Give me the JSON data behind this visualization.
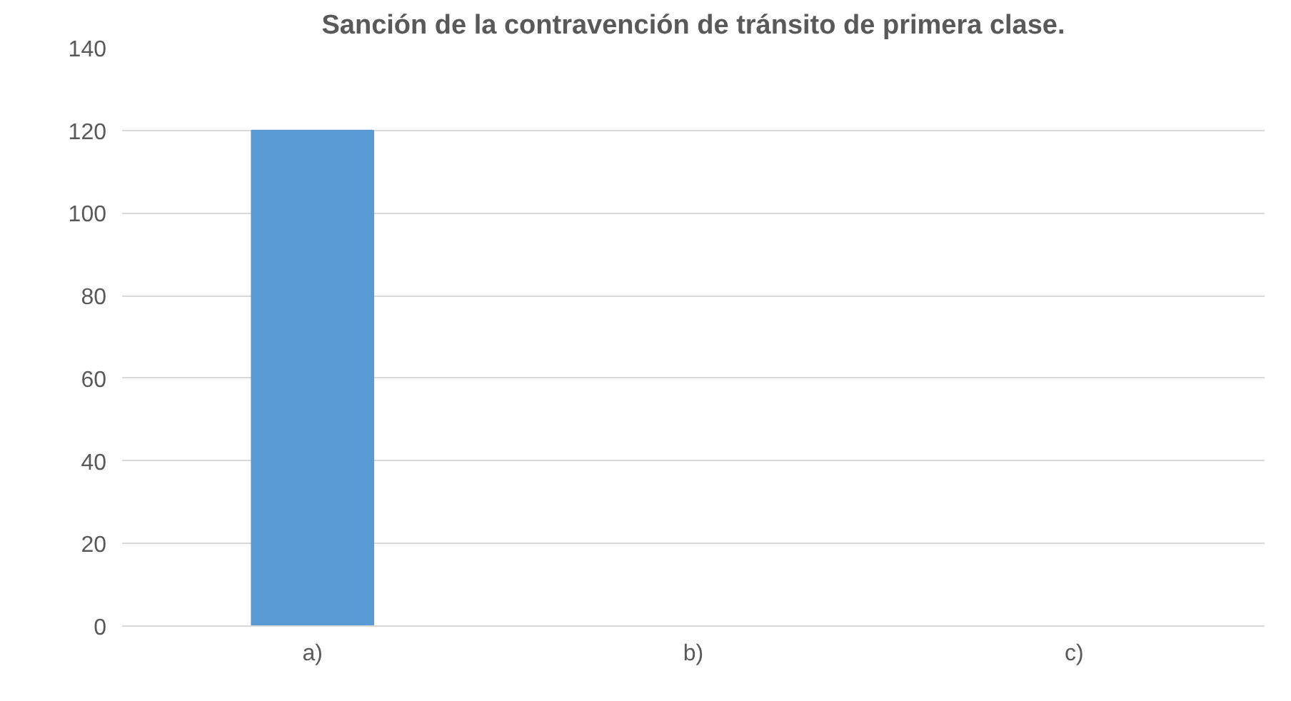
{
  "chart_data": {
    "type": "bar",
    "title": "Sanción de la contravención de tránsito de primera clase.",
    "categories": [
      "a)",
      "b)",
      "c)"
    ],
    "values": [
      120,
      0,
      0
    ],
    "color": "#5b9bd5",
    "ylim": [
      0,
      140
    ],
    "yticks": [
      0,
      20,
      40,
      60,
      80,
      100,
      120,
      140
    ],
    "grid": "y"
  }
}
